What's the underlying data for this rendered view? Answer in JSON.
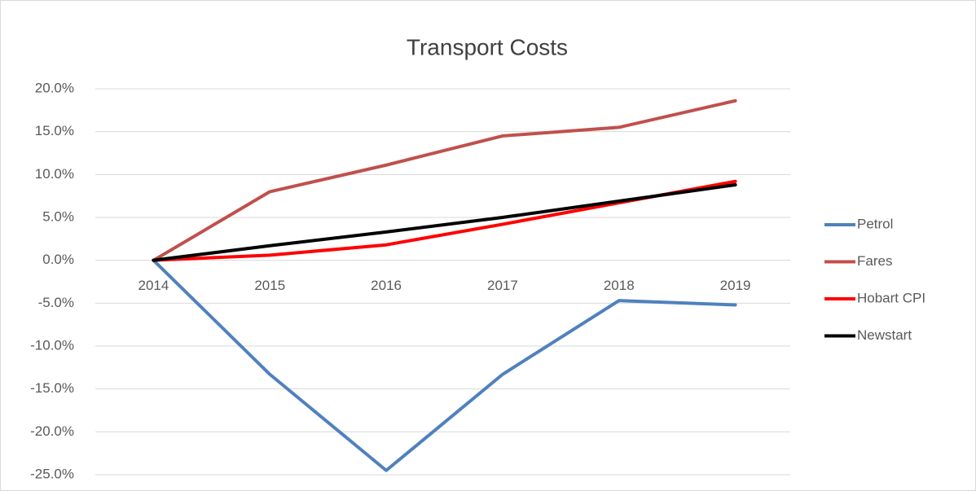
{
  "chart_data": {
    "type": "line",
    "title": "Transport Costs",
    "categories": [
      "2014",
      "2015",
      "2016",
      "2017",
      "2018",
      "2019"
    ],
    "series": [
      {
        "name": "Petrol",
        "color": "#4f81bd",
        "values": [
          0,
          -13.3,
          -24.5,
          -13.3,
          -4.7,
          -5.2
        ]
      },
      {
        "name": "Fares",
        "color": "#c0504d",
        "values": [
          0,
          8.0,
          11.1,
          14.5,
          15.5,
          18.6
        ]
      },
      {
        "name": "Hobart CPI",
        "color": "#ff0000",
        "values": [
          0,
          0.6,
          1.8,
          4.2,
          6.7,
          9.2
        ]
      },
      {
        "name": "Newstart",
        "color": "#000000",
        "values": [
          0,
          1.7,
          3.3,
          5.0,
          6.9,
          8.8
        ]
      }
    ],
    "ylim": [
      -25,
      20
    ],
    "yticks": [
      {
        "value": -25,
        "label": "-25.0%"
      },
      {
        "value": -20,
        "label": "-20.0%"
      },
      {
        "value": -15,
        "label": "-15.0%"
      },
      {
        "value": -10,
        "label": "-10.0%"
      },
      {
        "value": -5,
        "label": "-5.0%"
      },
      {
        "value": 0,
        "label": "0.0%"
      },
      {
        "value": 5,
        "label": "5.0%"
      },
      {
        "value": 10,
        "label": "10.0%"
      },
      {
        "value": 15,
        "label": "15.0%"
      },
      {
        "value": 20,
        "label": "20.0%"
      }
    ],
    "grid": true,
    "legend": "right"
  }
}
